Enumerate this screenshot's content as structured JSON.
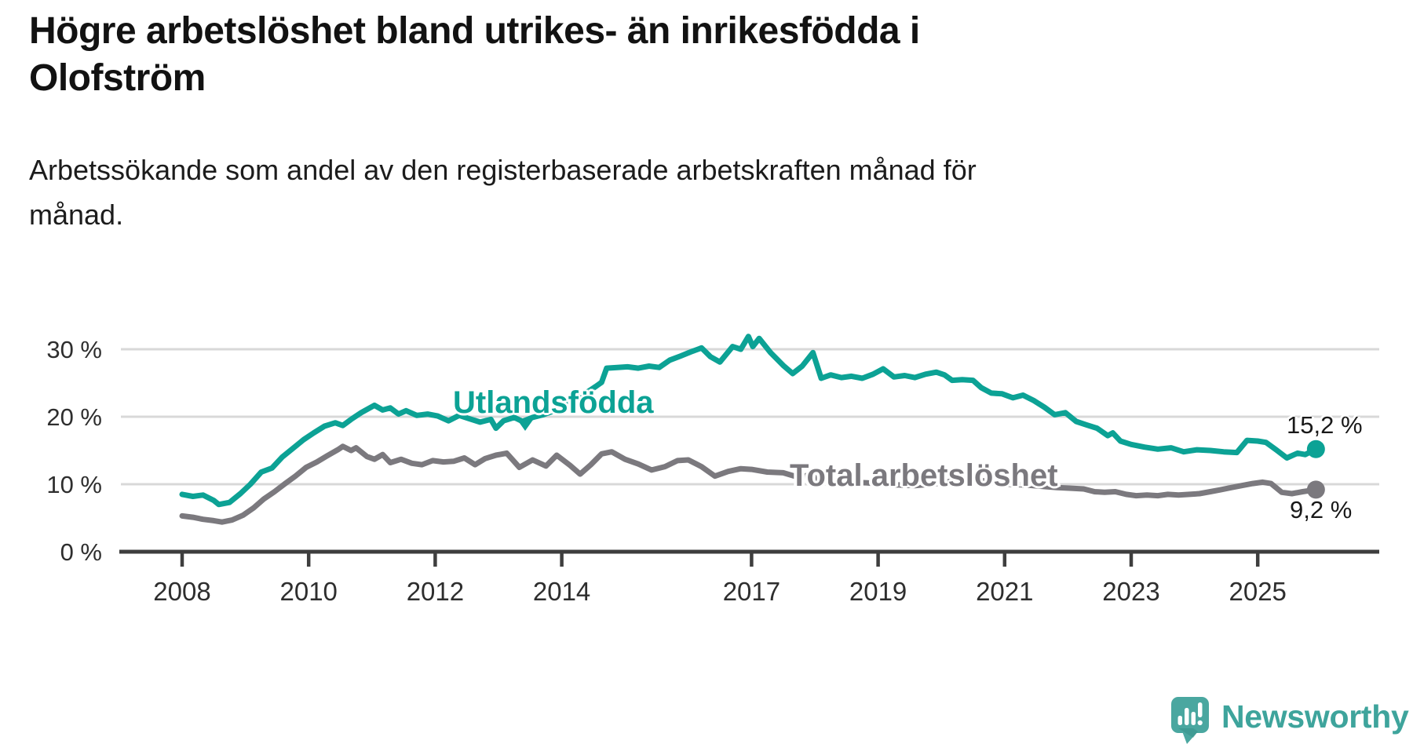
{
  "header": {
    "title_lines": [
      "Högre arbetslöshet bland utrikes- än inrikesfödda i",
      "Olofström"
    ],
    "subtitle_lines": [
      "Arbetssökande som andel av den registerbaserade arbetskraften månad för",
      "månad."
    ]
  },
  "logo": {
    "text": "Newsworthy"
  },
  "colors": {
    "teal": "#0ca295",
    "gray": "#7b797e",
    "gridline": "#d8d8d8",
    "axis": "#3e3e3e",
    "axis_text": "#2e2e2e",
    "logo_teal": "#4aa7a0",
    "logo_text": "#3ea49c"
  },
  "chart_data": {
    "type": "line",
    "title": "Högre arbetslöshet bland utrikes- än inrikesfödda i Olofström",
    "subtitle": "Arbetssökande som andel av den registerbaserade arbetskraften månad för månad.",
    "x_unit": "year (monthly observations)",
    "xlim": [
      2008,
      2026.3
    ],
    "ylim": [
      0,
      33
    ],
    "grid": "horizontal",
    "legend_position": "inline-annotations",
    "x_ticks": [
      2008,
      2010,
      2012,
      2014,
      2017,
      2019,
      2021,
      2023,
      2025
    ],
    "y_ticks": [
      {
        "value": 0,
        "label": "0 %"
      },
      {
        "value": 10,
        "label": "10 %"
      },
      {
        "value": 20,
        "label": "20 %"
      },
      {
        "value": 30,
        "label": "30 %"
      }
    ],
    "series": [
      {
        "name": "Utlandsfödda",
        "color": "#0ca295",
        "end_value": 15.2,
        "end_label": "15,2 %",
        "points": [
          [
            2008.0,
            8.5
          ],
          [
            2008.17,
            8.2
          ],
          [
            2008.33,
            8.4
          ],
          [
            2008.5,
            7.6
          ],
          [
            2008.58,
            7.0
          ],
          [
            2008.75,
            7.3
          ],
          [
            2008.92,
            8.6
          ],
          [
            2009.08,
            10.0
          ],
          [
            2009.25,
            11.8
          ],
          [
            2009.42,
            12.4
          ],
          [
            2009.58,
            14.0
          ],
          [
            2009.75,
            15.3
          ],
          [
            2009.92,
            16.6
          ],
          [
            2010.08,
            17.6
          ],
          [
            2010.25,
            18.6
          ],
          [
            2010.42,
            19.1
          ],
          [
            2010.54,
            18.7
          ],
          [
            2010.67,
            19.6
          ],
          [
            2010.83,
            20.6
          ],
          [
            2011.04,
            21.7
          ],
          [
            2011.17,
            21.0
          ],
          [
            2011.29,
            21.3
          ],
          [
            2011.42,
            20.4
          ],
          [
            2011.54,
            20.9
          ],
          [
            2011.71,
            20.2
          ],
          [
            2011.88,
            20.4
          ],
          [
            2012.04,
            20.1
          ],
          [
            2012.21,
            19.4
          ],
          [
            2012.38,
            20.2
          ],
          [
            2012.54,
            19.7
          ],
          [
            2012.71,
            19.2
          ],
          [
            2012.88,
            19.6
          ],
          [
            2012.96,
            18.3
          ],
          [
            2013.08,
            19.4
          ],
          [
            2013.25,
            19.9
          ],
          [
            2013.38,
            19.3
          ],
          [
            2013.54,
            19.9
          ],
          [
            2013.71,
            20.3
          ],
          [
            2013.88,
            20.9
          ],
          [
            2014.04,
            21.5
          ],
          [
            2014.21,
            22.5
          ],
          [
            2014.38,
            23.5
          ],
          [
            2014.54,
            24.5
          ],
          [
            2014.63,
            25.1
          ],
          [
            2014.71,
            27.2
          ],
          [
            2014.88,
            27.3
          ],
          [
            2015.04,
            27.4
          ],
          [
            2015.21,
            27.2
          ],
          [
            2015.38,
            27.5
          ],
          [
            2015.54,
            27.3
          ],
          [
            2015.71,
            28.4
          ],
          [
            2015.88,
            29.0
          ],
          [
            2016.04,
            29.6
          ],
          [
            2016.21,
            30.2
          ],
          [
            2016.35,
            28.9
          ],
          [
            2016.5,
            28.1
          ],
          [
            2016.7,
            30.4
          ],
          [
            2016.83,
            30.0
          ],
          [
            2016.95,
            31.9
          ],
          [
            2017.02,
            30.4
          ],
          [
            2017.12,
            31.6
          ],
          [
            2017.3,
            29.5
          ],
          [
            2017.5,
            27.6
          ],
          [
            2017.65,
            26.4
          ],
          [
            2017.8,
            27.5
          ],
          [
            2017.97,
            29.5
          ],
          [
            2018.1,
            25.7
          ],
          [
            2018.25,
            26.2
          ],
          [
            2018.42,
            25.8
          ],
          [
            2018.58,
            26.0
          ],
          [
            2018.75,
            25.7
          ],
          [
            2018.92,
            26.3
          ],
          [
            2019.08,
            27.1
          ],
          [
            2019.25,
            25.9
          ],
          [
            2019.42,
            26.1
          ],
          [
            2019.58,
            25.8
          ],
          [
            2019.75,
            26.3
          ],
          [
            2019.92,
            26.6
          ],
          [
            2020.05,
            26.2
          ],
          [
            2020.17,
            25.4
          ],
          [
            2020.33,
            25.5
          ],
          [
            2020.5,
            25.4
          ],
          [
            2020.63,
            24.3
          ],
          [
            2020.79,
            23.5
          ],
          [
            2020.96,
            23.4
          ],
          [
            2021.13,
            22.8
          ],
          [
            2021.29,
            23.2
          ],
          [
            2021.46,
            22.4
          ],
          [
            2021.63,
            21.4
          ],
          [
            2021.79,
            20.3
          ],
          [
            2021.96,
            20.6
          ],
          [
            2022.13,
            19.3
          ],
          [
            2022.29,
            18.8
          ],
          [
            2022.46,
            18.3
          ],
          [
            2022.63,
            17.2
          ],
          [
            2022.71,
            17.6
          ],
          [
            2022.83,
            16.4
          ],
          [
            2023.0,
            15.9
          ],
          [
            2023.21,
            15.5
          ],
          [
            2023.42,
            15.2
          ],
          [
            2023.63,
            15.4
          ],
          [
            2023.83,
            14.8
          ],
          [
            2024.04,
            15.1
          ],
          [
            2024.25,
            15.0
          ],
          [
            2024.46,
            14.8
          ],
          [
            2024.67,
            14.7
          ],
          [
            2024.83,
            16.5
          ],
          [
            2025.0,
            16.4
          ],
          [
            2025.13,
            16.2
          ],
          [
            2025.29,
            15.1
          ],
          [
            2025.46,
            13.9
          ],
          [
            2025.63,
            14.6
          ],
          [
            2025.75,
            14.4
          ],
          [
            2025.92,
            15.2
          ]
        ]
      },
      {
        "name": "Total arbetslöshet",
        "color": "#7b797e",
        "end_value": 9.2,
        "end_label": "9,2 %",
        "points": [
          [
            2008.0,
            5.3
          ],
          [
            2008.17,
            5.1
          ],
          [
            2008.33,
            4.8
          ],
          [
            2008.5,
            4.6
          ],
          [
            2008.63,
            4.4
          ],
          [
            2008.79,
            4.7
          ],
          [
            2008.96,
            5.4
          ],
          [
            2009.13,
            6.5
          ],
          [
            2009.29,
            7.8
          ],
          [
            2009.46,
            8.9
          ],
          [
            2009.63,
            10.1
          ],
          [
            2009.79,
            11.2
          ],
          [
            2009.96,
            12.5
          ],
          [
            2010.13,
            13.3
          ],
          [
            2010.29,
            14.2
          ],
          [
            2010.46,
            15.1
          ],
          [
            2010.54,
            15.6
          ],
          [
            2010.67,
            15.0
          ],
          [
            2010.75,
            15.4
          ],
          [
            2010.92,
            14.1
          ],
          [
            2011.04,
            13.7
          ],
          [
            2011.17,
            14.4
          ],
          [
            2011.29,
            13.2
          ],
          [
            2011.46,
            13.7
          ],
          [
            2011.63,
            13.1
          ],
          [
            2011.79,
            12.9
          ],
          [
            2011.96,
            13.5
          ],
          [
            2012.13,
            13.3
          ],
          [
            2012.29,
            13.4
          ],
          [
            2012.46,
            13.9
          ],
          [
            2012.63,
            12.9
          ],
          [
            2012.79,
            13.8
          ],
          [
            2012.96,
            14.3
          ],
          [
            2013.13,
            14.6
          ],
          [
            2013.33,
            12.5
          ],
          [
            2013.54,
            13.6
          ],
          [
            2013.75,
            12.7
          ],
          [
            2013.92,
            14.3
          ],
          [
            2014.13,
            12.8
          ],
          [
            2014.29,
            11.5
          ],
          [
            2014.46,
            12.9
          ],
          [
            2014.63,
            14.5
          ],
          [
            2014.79,
            14.8
          ],
          [
            2015.0,
            13.7
          ],
          [
            2015.21,
            13.0
          ],
          [
            2015.42,
            12.1
          ],
          [
            2015.63,
            12.6
          ],
          [
            2015.83,
            13.5
          ],
          [
            2016.0,
            13.6
          ],
          [
            2016.21,
            12.6
          ],
          [
            2016.42,
            11.2
          ],
          [
            2016.63,
            11.9
          ],
          [
            2016.83,
            12.3
          ],
          [
            2017.0,
            12.2
          ],
          [
            2017.25,
            11.8
          ],
          [
            2017.5,
            11.7
          ],
          [
            2017.75,
            11.0
          ],
          [
            2017.92,
            11.4
          ],
          [
            2018.08,
            10.7
          ],
          [
            2018.33,
            10.5
          ],
          [
            2018.58,
            10.3
          ],
          [
            2018.83,
            10.2
          ],
          [
            2019.08,
            10.0
          ],
          [
            2019.33,
            9.9
          ],
          [
            2019.58,
            9.8
          ],
          [
            2019.83,
            10.0
          ],
          [
            2020.08,
            10.3
          ],
          [
            2020.33,
            10.8
          ],
          [
            2020.58,
            10.6
          ],
          [
            2020.83,
            10.3
          ],
          [
            2021.08,
            10.0
          ],
          [
            2021.33,
            9.9
          ],
          [
            2021.58,
            9.7
          ],
          [
            2021.83,
            9.5
          ],
          [
            2022.08,
            9.4
          ],
          [
            2022.25,
            9.3
          ],
          [
            2022.42,
            8.9
          ],
          [
            2022.58,
            8.8
          ],
          [
            2022.75,
            8.9
          ],
          [
            2022.92,
            8.5
          ],
          [
            2023.08,
            8.3
          ],
          [
            2023.25,
            8.4
          ],
          [
            2023.42,
            8.3
          ],
          [
            2023.58,
            8.5
          ],
          [
            2023.75,
            8.4
          ],
          [
            2023.92,
            8.5
          ],
          [
            2024.08,
            8.6
          ],
          [
            2024.25,
            8.9
          ],
          [
            2024.42,
            9.2
          ],
          [
            2024.58,
            9.5
          ],
          [
            2024.75,
            9.8
          ],
          [
            2024.92,
            10.1
          ],
          [
            2025.08,
            10.3
          ],
          [
            2025.21,
            10.1
          ],
          [
            2025.38,
            8.8
          ],
          [
            2025.54,
            8.6
          ],
          [
            2025.71,
            8.9
          ],
          [
            2025.92,
            9.2
          ]
        ]
      }
    ]
  }
}
